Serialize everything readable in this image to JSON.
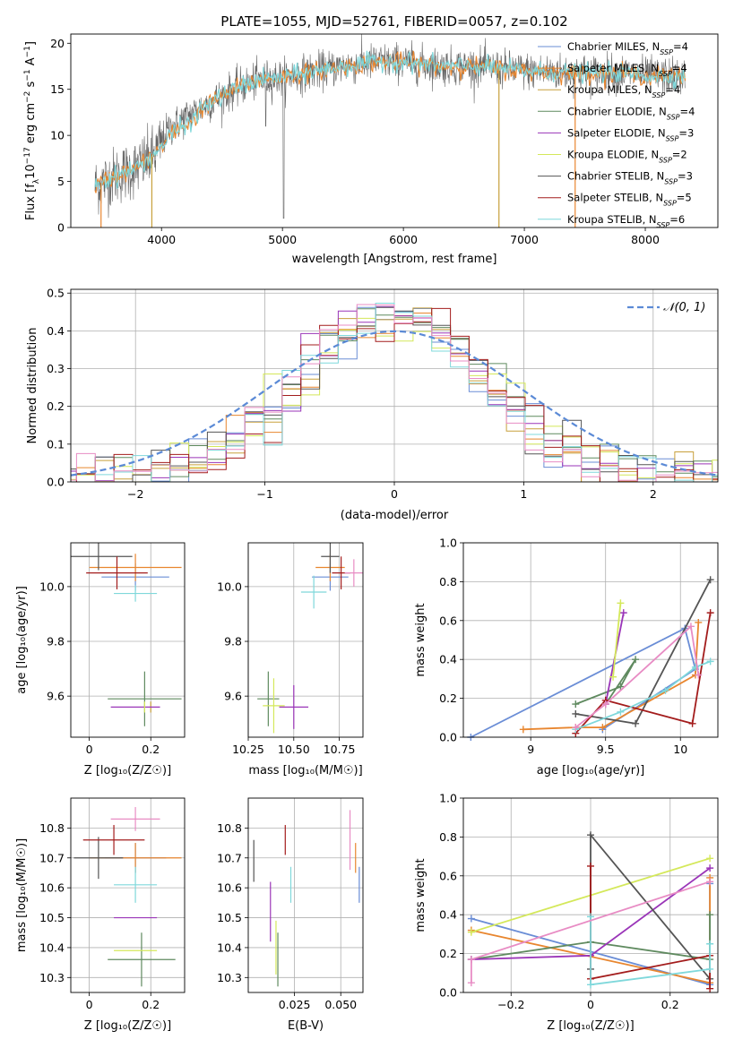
{
  "colors": {
    "Chabrier MILES": "#6a8dd6",
    "Salpeter MILES": "#e8862f",
    "Kroupa MILES": "#c8a03b",
    "Chabrier ELODIE": "#5f8a5f",
    "Salpeter ELODIE": "#9a35b8",
    "Kroupa ELODIE": "#d4e85a",
    "Chabrier STELIB": "#555555",
    "Salpeter STELIB": "#a31c1c",
    "Kroupa STELIB": "#7fd8db",
    "extra": "#e88cc4",
    "normal": "#5b8ad6"
  },
  "legend_series": [
    {
      "label": "Chabrier MILES, N",
      "sub": "SSP",
      "tail": "=4",
      "color": "#6a8dd6"
    },
    {
      "label": "Salpeter MILES, N",
      "sub": "SSP",
      "tail": "=4",
      "color": "#e8862f"
    },
    {
      "label": "Kroupa MILES, N",
      "sub": "SSP",
      "tail": "=4",
      "color": "#c8a03b"
    },
    {
      "label": "Chabrier ELODIE, N",
      "sub": "SSP",
      "tail": "=4",
      "color": "#5f8a5f"
    },
    {
      "label": "Salpeter ELODIE, N",
      "sub": "SSP",
      "tail": "=3",
      "color": "#9a35b8"
    },
    {
      "label": "Kroupa ELODIE, N",
      "sub": "SSP",
      "tail": "=2",
      "color": "#d4e85a"
    },
    {
      "label": "Chabrier STELIB, N",
      "sub": "SSP",
      "tail": "=3",
      "color": "#555555"
    },
    {
      "label": "Salpeter STELIB, N",
      "sub": "SSP",
      "tail": "=5",
      "color": "#a31c1c"
    },
    {
      "label": "Kroupa STELIB, N",
      "sub": "SSP",
      "tail": "=6",
      "color": "#7fd8db"
    }
  ],
  "chart_data": [
    {
      "id": "spectrum",
      "type": "line",
      "title": "PLATE=1055, MJD=52761, FIBERID=0057, z=0.102",
      "xlabel": "wavelength [Angstrom, rest frame]",
      "ylabel_parts": [
        "Flux [f",
        "λ",
        "10",
        "−17",
        " erg cm",
        "−2",
        " s",
        "−1",
        " A",
        "−1",
        "]"
      ],
      "xlim": [
        3250,
        8600
      ],
      "ylim": [
        0,
        21
      ],
      "xticks": [
        4000,
        5000,
        6000,
        7000,
        8000
      ],
      "yticks": [
        0,
        5,
        10,
        15,
        20
      ],
      "continuum": [
        [
          3450,
          4.5
        ],
        [
          3600,
          5.5
        ],
        [
          3800,
          6.5
        ],
        [
          3950,
          8
        ],
        [
          4050,
          10.5
        ],
        [
          4200,
          12
        ],
        [
          4400,
          13.5
        ],
        [
          4600,
          15
        ],
        [
          4800,
          16
        ],
        [
          5000,
          16.3
        ],
        [
          5200,
          16.8
        ],
        [
          5500,
          17.5
        ],
        [
          5800,
          18
        ],
        [
          6000,
          18
        ],
        [
          6300,
          17.5
        ],
        [
          6600,
          17.5
        ],
        [
          7000,
          17
        ],
        [
          7400,
          16.8
        ],
        [
          7800,
          16.8
        ],
        [
          8000,
          16.5
        ],
        [
          8300,
          16.4
        ]
      ]
    },
    {
      "id": "residuals",
      "type": "histogram",
      "xlabel": "(data-model)/error",
      "ylabel": "Normed distribution",
      "xlim": [
        -2.5,
        2.5
      ],
      "ylim": [
        0,
        0.51
      ],
      "xticks": [
        -2,
        -1,
        0,
        1,
        2
      ],
      "yticks": [
        0,
        0.1,
        0.2,
        0.3,
        0.4,
        0.5
      ],
      "grid": true,
      "legend": {
        "label": "𝒩(0, 1)",
        "position": "top-right"
      },
      "bins": 36
    },
    {
      "id": "age-vs-Z",
      "type": "scatter",
      "xlabel": "Z [log₁₀(Z/Z☉)]",
      "ylabel": "age  [log₁₀(age/yr)]",
      "xlim": [
        -0.06,
        0.31
      ],
      "ylim": [
        9.45,
        10.16
      ],
      "xticks": [
        0.0,
        0.2
      ],
      "yticks": [
        9.6,
        9.8,
        10.0
      ],
      "points": [
        {
          "s": "Chabrier MILES",
          "x": 0.15,
          "xe": 0.11,
          "y": 10.035,
          "ye": 0.05
        },
        {
          "s": "Salpeter MILES",
          "x": 0.15,
          "xe": 0.15,
          "y": 10.07,
          "ye": 0.05
        },
        {
          "s": "Kroupa MILES",
          "x": 0.2,
          "xe": 0.0,
          "y": 9.56,
          "ye": 0.02
        },
        {
          "s": "Chabrier ELODIE",
          "x": 0.18,
          "xe": 0.12,
          "y": 9.59,
          "ye": 0.1
        },
        {
          "s": "Salpeter ELODIE",
          "x": 0.15,
          "xe": 0.08,
          "y": 9.56,
          "ye": 0.0
        },
        {
          "s": "Kroupa ELODIE",
          "x": 0.18,
          "xe": 0.0,
          "y": 9.56,
          "ye": 0.02
        },
        {
          "s": "Chabrier STELIB",
          "x": 0.03,
          "xe": 0.11,
          "y": 10.11,
          "ye": 0.05
        },
        {
          "s": "Salpeter STELIB",
          "x": 0.09,
          "xe": 0.1,
          "y": 10.05,
          "ye": 0.06
        },
        {
          "s": "Kroupa STELIB",
          "x": 0.15,
          "xe": 0.07,
          "y": 9.975,
          "ye": 0.03
        },
        {
          "s": "extra",
          "x": 0.18,
          "xe": 0.0,
          "y": 9.6,
          "ye": 0.0
        }
      ]
    },
    {
      "id": "age-vs-mass",
      "type": "scatter",
      "xlabel": "mass [log₁₀(M/M☉)]",
      "ylabel": "",
      "xlim": [
        10.25,
        10.88
      ],
      "ylim": [
        9.45,
        10.16
      ],
      "xticks": [
        10.25,
        10.5,
        10.75
      ],
      "xticklabels": [
        "10.25",
        "10.50",
        "10.75"
      ],
      "yticks": [
        9.6,
        9.8,
        10.0
      ],
      "points": [
        {
          "s": "Chabrier MILES",
          "x": 10.7,
          "xe": 0.1,
          "y": 10.035,
          "ye": 0.05
        },
        {
          "s": "Salpeter MILES",
          "x": 10.7,
          "xe": 0.08,
          "y": 10.07,
          "ye": 0.05
        },
        {
          "s": "Chabrier ELODIE",
          "x": 10.36,
          "xe": 0.06,
          "y": 9.59,
          "ye": 0.1
        },
        {
          "s": "Salpeter ELODIE",
          "x": 10.5,
          "xe": 0.08,
          "y": 9.56,
          "ye": 0.08
        },
        {
          "s": "Kroupa ELODIE",
          "x": 10.39,
          "xe": 0.06,
          "y": 9.565,
          "ye": 0.1
        },
        {
          "s": "Chabrier STELIB",
          "x": 10.7,
          "xe": 0.05,
          "y": 10.11,
          "ye": 0.06
        },
        {
          "s": "Salpeter STELIB",
          "x": 10.76,
          "xe": 0.05,
          "y": 10.05,
          "ye": 0.06
        },
        {
          "s": "Kroupa STELIB",
          "x": 10.61,
          "xe": 0.07,
          "y": 9.98,
          "ye": 0.06
        },
        {
          "s": "extra",
          "x": 10.83,
          "xe": 0.05,
          "y": 10.05,
          "ye": 0.05
        }
      ]
    },
    {
      "id": "weight-vs-age",
      "type": "line",
      "xlabel": "age  [log₁₀(age/yr)]",
      "ylabel": "mass weight",
      "xlim": [
        8.55,
        10.25
      ],
      "ylim": [
        0,
        1.0
      ],
      "xticks": [
        9.0,
        9.5,
        10.0
      ],
      "yticks": [
        0.0,
        0.2,
        0.4,
        0.6,
        0.8,
        1.0
      ],
      "series": [
        {
          "s": "Chabrier MILES",
          "pts": [
            [
              8.6,
              0.0
            ],
            [
              10.03,
              0.56
            ],
            [
              10.1,
              0.35
            ],
            [
              9.48,
              0.04
            ]
          ]
        },
        {
          "s": "Salpeter MILES",
          "pts": [
            [
              8.95,
              0.04
            ],
            [
              9.3,
              0.05
            ],
            [
              9.48,
              0.05
            ],
            [
              10.1,
              0.32
            ],
            [
              10.12,
              0.59
            ]
          ]
        },
        {
          "s": "Chabrier ELODIE",
          "pts": [
            [
              9.3,
              0.17
            ],
            [
              9.6,
              0.26
            ],
            [
              9.7,
              0.4
            ],
            [
              9.5,
              0.17
            ]
          ]
        },
        {
          "s": "Salpeter ELODIE",
          "pts": [
            [
              9.5,
              0.17
            ],
            [
              9.62,
              0.64
            ]
          ]
        },
        {
          "s": "Kroupa ELODIE",
          "pts": [
            [
              9.55,
              0.31
            ],
            [
              9.6,
              0.69
            ]
          ]
        },
        {
          "s": "Chabrier STELIB",
          "pts": [
            [
              9.3,
              0.12
            ],
            [
              9.7,
              0.07
            ],
            [
              10.2,
              0.81
            ]
          ]
        },
        {
          "s": "Salpeter STELIB",
          "pts": [
            [
              9.3,
              0.02
            ],
            [
              9.5,
              0.19
            ],
            [
              10.08,
              0.07
            ],
            [
              10.2,
              0.64
            ]
          ]
        },
        {
          "s": "Kroupa STELIB",
          "pts": [
            [
              9.3,
              0.04
            ],
            [
              9.6,
              0.13
            ],
            [
              9.9,
              0.24
            ],
            [
              10.1,
              0.36
            ],
            [
              10.2,
              0.39
            ]
          ]
        },
        {
          "s": "extra",
          "pts": [
            [
              9.3,
              0.05
            ],
            [
              9.5,
              0.17
            ],
            [
              10.07,
              0.57
            ],
            [
              10.12,
              0.32
            ]
          ]
        }
      ]
    },
    {
      "id": "mass-vs-Z",
      "type": "scatter",
      "xlabel": "Z [log₁₀(Z/Z☉)]",
      "ylabel": "mass [log₁₀(M/M☉)]",
      "xlim": [
        -0.06,
        0.31
      ],
      "ylim": [
        10.25,
        10.9
      ],
      "xticks": [
        0.0,
        0.2
      ],
      "yticks": [
        10.3,
        10.4,
        10.5,
        10.6,
        10.7,
        10.8
      ],
      "points": [
        {
          "s": "Chabrier MILES",
          "x": 0.15,
          "xe": 0.1,
          "y": 10.7,
          "ye": 0.05
        },
        {
          "s": "Salpeter MILES",
          "x": 0.15,
          "xe": 0.15,
          "y": 10.7,
          "ye": 0.05
        },
        {
          "s": "Chabrier ELODIE",
          "x": 0.17,
          "xe": 0.11,
          "y": 10.36,
          "ye": 0.09
        },
        {
          "s": "Salpeter ELODIE",
          "x": 0.15,
          "xe": 0.07,
          "y": 10.5,
          "ye": 0.0
        },
        {
          "s": "Kroupa ELODIE",
          "x": 0.15,
          "xe": 0.07,
          "y": 10.39,
          "ye": 0.0
        },
        {
          "s": "Chabrier STELIB",
          "x": 0.03,
          "xe": 0.08,
          "y": 10.7,
          "ye": 0.07
        },
        {
          "s": "Salpeter STELIB",
          "x": 0.08,
          "xe": 0.1,
          "y": 10.76,
          "ye": 0.05
        },
        {
          "s": "Kroupa STELIB",
          "x": 0.15,
          "xe": 0.07,
          "y": 10.61,
          "ye": 0.06
        },
        {
          "s": "extra",
          "x": 0.15,
          "xe": 0.08,
          "y": 10.83,
          "ye": 0.04
        }
      ]
    },
    {
      "id": "mass-vs-ebv",
      "type": "scatter",
      "xlabel": "E(B-V)",
      "ylabel": "",
      "xlim": [
        0.0,
        0.062
      ],
      "ylim": [
        10.25,
        10.9
      ],
      "xticks": [
        0.025,
        0.05
      ],
      "xticklabels": [
        "0.025",
        "0.050"
      ],
      "yticks": [
        10.3,
        10.4,
        10.5,
        10.6,
        10.7,
        10.8
      ],
      "points": [
        {
          "s": "Chabrier MILES",
          "x": 0.06,
          "xe": 0.0,
          "y": 10.61,
          "ye": 0.06
        },
        {
          "s": "Salpeter MILES",
          "x": 0.058,
          "xe": 0.0,
          "y": 10.7,
          "ye": 0.05
        },
        {
          "s": "Chabrier ELODIE",
          "x": 0.016,
          "xe": 0.0,
          "y": 10.36,
          "ye": 0.09
        },
        {
          "s": "Salpeter ELODIE",
          "x": 0.012,
          "xe": 0.0,
          "y": 10.52,
          "ye": 0.1
        },
        {
          "s": "Kroupa ELODIE",
          "x": 0.015,
          "xe": 0.0,
          "y": 10.4,
          "ye": 0.09
        },
        {
          "s": "Chabrier STELIB",
          "x": 0.003,
          "xe": 0.0,
          "y": 10.69,
          "ye": 0.07
        },
        {
          "s": "Salpeter STELIB",
          "x": 0.02,
          "xe": 0.0,
          "y": 10.76,
          "ye": 0.05
        },
        {
          "s": "Kroupa STELIB",
          "x": 0.023,
          "xe": 0.0,
          "y": 10.61,
          "ye": 0.06
        },
        {
          "s": "extra",
          "x": 0.055,
          "xe": 0.0,
          "y": 10.76,
          "ye": 0.1
        }
      ]
    },
    {
      "id": "weight-vs-Z",
      "type": "line",
      "xlabel": "Z [log₁₀(Z/Z☉)]",
      "ylabel": "mass weight",
      "xlim": [
        -0.32,
        0.32
      ],
      "ylim": [
        0,
        1.0
      ],
      "xticks": [
        -0.2,
        0.0,
        0.2
      ],
      "yticks": [
        0.0,
        0.2,
        0.4,
        0.6,
        0.8,
        1.0
      ],
      "series": [
        {
          "s": "Chabrier MILES",
          "pts": [
            [
              -0.3,
              0.38
            ],
            [
              0.3,
              0.04
            ],
            [
              0.3,
              0.56
            ]
          ]
        },
        {
          "s": "Salpeter MILES",
          "pts": [
            [
              -0.3,
              0.32
            ],
            [
              0.3,
              0.05
            ],
            [
              0.3,
              0.59
            ]
          ]
        },
        {
          "s": "Chabrier ELODIE",
          "pts": [
            [
              -0.3,
              0.17
            ],
            [
              0.0,
              0.26
            ],
            [
              0.3,
              0.17
            ],
            [
              0.3,
              0.4
            ]
          ]
        },
        {
          "s": "Salpeter ELODIE",
          "pts": [
            [
              -0.3,
              0.17
            ],
            [
              0.0,
              0.19
            ],
            [
              0.3,
              0.64
            ]
          ]
        },
        {
          "s": "Kroupa ELODIE",
          "pts": [
            [
              -0.3,
              0.31
            ],
            [
              0.3,
              0.69
            ]
          ]
        },
        {
          "s": "Chabrier STELIB",
          "pts": [
            [
              0.0,
              0.12
            ],
            [
              0.0,
              0.81
            ],
            [
              0.3,
              0.07
            ]
          ]
        },
        {
          "s": "Salpeter STELIB",
          "pts": [
            [
              0.0,
              0.65
            ],
            [
              0.0,
              0.07
            ],
            [
              0.3,
              0.19
            ],
            [
              0.3,
              0.02
            ]
          ]
        },
        {
          "s": "Kroupa STELIB",
          "pts": [
            [
              0.0,
              0.39
            ],
            [
              0.0,
              0.04
            ],
            [
              0.3,
              0.12
            ],
            [
              0.3,
              0.25
            ]
          ]
        },
        {
          "s": "extra",
          "pts": [
            [
              -0.3,
              0.05
            ],
            [
              -0.3,
              0.17
            ],
            [
              0.3,
              0.57
            ]
          ]
        }
      ]
    }
  ]
}
